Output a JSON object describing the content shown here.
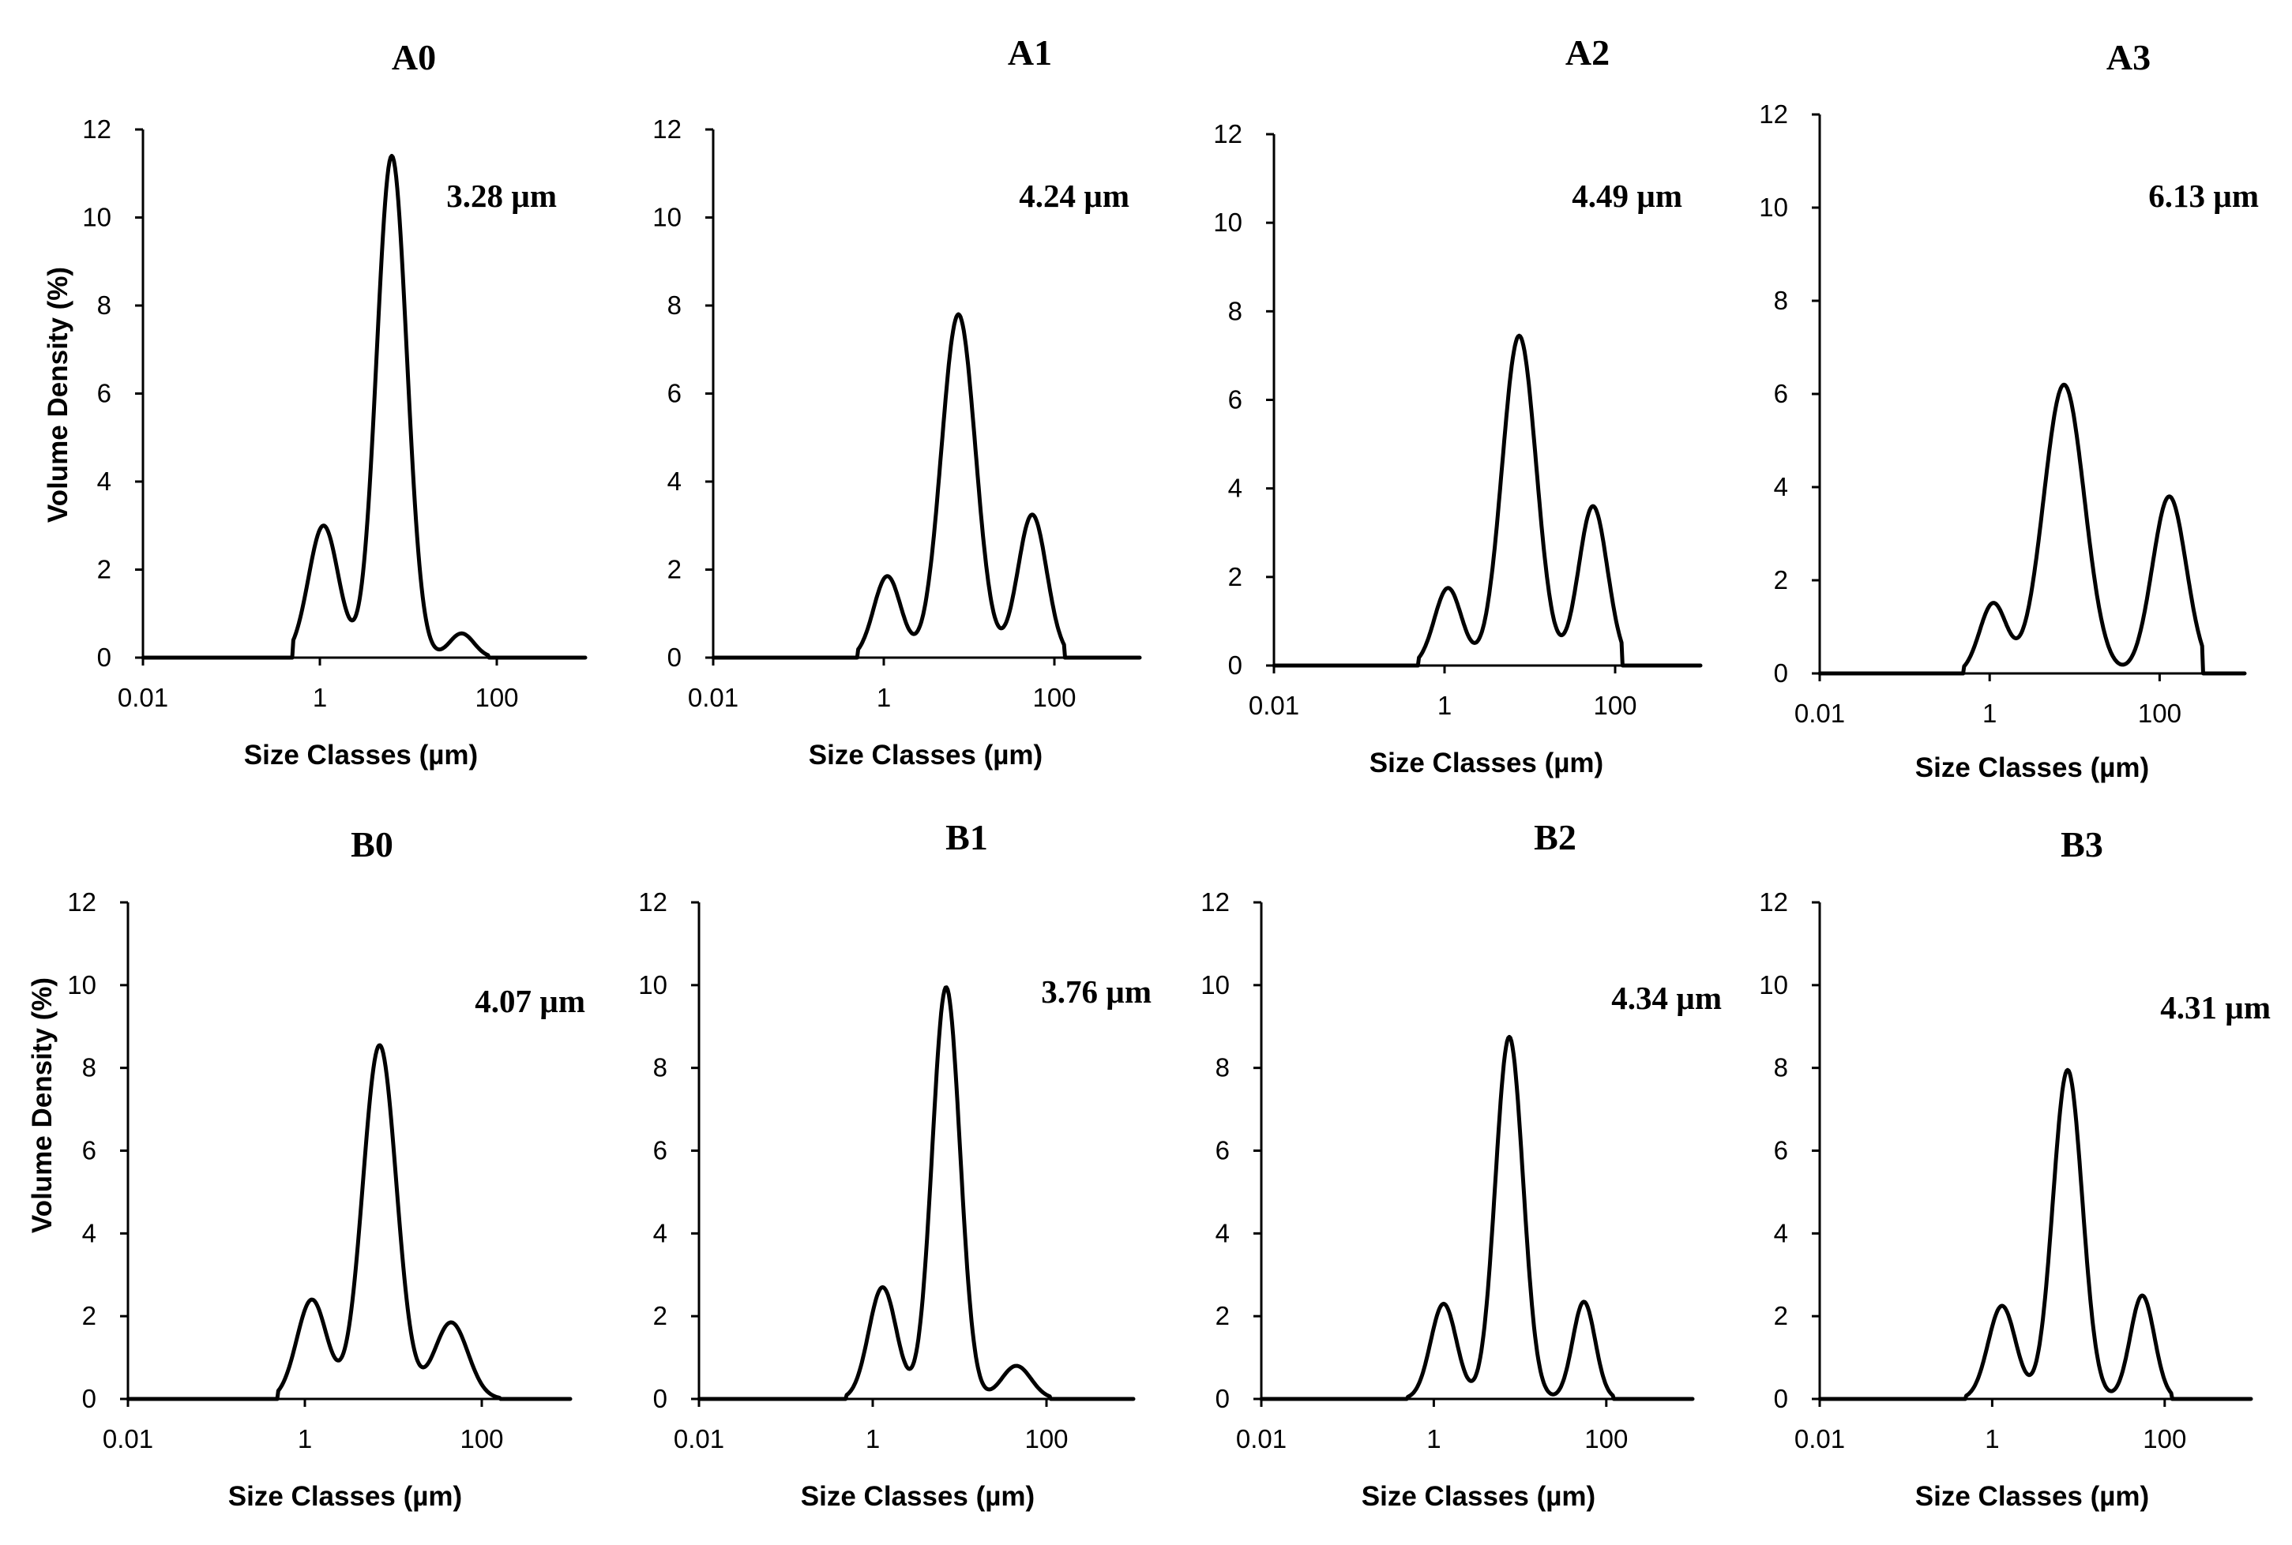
{
  "chart_data": [
    {
      "type": "line",
      "title": "A0",
      "annotation": "3.28 µm",
      "xlabel": "Size Classes (µm)",
      "ylabel": "Volume Density (%)",
      "xscale": "log",
      "xlim": [
        0.01,
        1000
      ],
      "ylim": [
        0,
        12
      ],
      "yticks": [
        "0",
        "2",
        "4",
        "6",
        "8",
        "10",
        "12"
      ],
      "xticks": [
        "0.01",
        "1",
        "100"
      ],
      "series": [
        {
          "name": "A0",
          "peaks": [
            {
              "x": 1.1,
              "y": 3.0,
              "w": 0.17
            },
            {
              "x": 6.5,
              "y": 11.4,
              "w": 0.17
            },
            {
              "x": 40,
              "y": 0.55,
              "w": 0.14
            }
          ],
          "range": [
            0.5,
            80
          ]
        }
      ]
    },
    {
      "type": "line",
      "title": "A1",
      "annotation": "4.24 µm",
      "xlabel": "Size Classes (µm)",
      "ylabel": "",
      "xscale": "log",
      "xlim": [
        0.01,
        1000
      ],
      "ylim": [
        0,
        12
      ],
      "yticks": [
        "0",
        "2",
        "4",
        "6",
        "8",
        "10",
        "12"
      ],
      "xticks": [
        "0.01",
        "1",
        "100"
      ],
      "series": [
        {
          "name": "A1",
          "peaks": [
            {
              "x": 1.1,
              "y": 1.85,
              "w": 0.16
            },
            {
              "x": 7.5,
              "y": 7.8,
              "w": 0.2
            },
            {
              "x": 55,
              "y": 3.25,
              "w": 0.17
            }
          ],
          "range": [
            0.5,
            130
          ]
        }
      ]
    },
    {
      "type": "line",
      "title": "A2",
      "annotation": "4.49 µm",
      "xlabel": "Size Classes (µm)",
      "ylabel": "",
      "xscale": "log",
      "xlim": [
        0.01,
        1000
      ],
      "ylim": [
        0,
        12
      ],
      "yticks": [
        "0",
        "2",
        "4",
        "6",
        "8",
        "10",
        "12"
      ],
      "xticks": [
        "0.01",
        "1",
        "100"
      ],
      "series": [
        {
          "name": "A2",
          "peaks": [
            {
              "x": 1.1,
              "y": 1.75,
              "w": 0.16
            },
            {
              "x": 7.5,
              "y": 7.45,
              "w": 0.2
            },
            {
              "x": 55,
              "y": 3.6,
              "w": 0.17
            }
          ],
          "range": [
            0.5,
            120
          ]
        }
      ]
    },
    {
      "type": "line",
      "title": "A3",
      "annotation": "6.13 µm",
      "xlabel": "Size Classes (µm)",
      "ylabel": "",
      "xscale": "log",
      "xlim": [
        0.01,
        1000
      ],
      "ylim": [
        0,
        12
      ],
      "yticks": [
        "0",
        "2",
        "4",
        "6",
        "8",
        "10",
        "12"
      ],
      "xticks": [
        "0.01",
        "1",
        "100"
      ],
      "series": [
        {
          "name": "A3",
          "peaks": [
            {
              "x": 1.1,
              "y": 1.5,
              "w": 0.16
            },
            {
              "x": 7.5,
              "y": 6.2,
              "w": 0.24
            },
            {
              "x": 130,
              "y": 3.8,
              "w": 0.2
            }
          ],
          "range": [
            0.5,
            320
          ]
        }
      ]
    },
    {
      "type": "line",
      "title": "B0",
      "annotation": "4.07 µm",
      "xlabel": "Size Classes (µm)",
      "ylabel": "Volume Density (%)",
      "xscale": "log",
      "xlim": [
        0.01,
        1000
      ],
      "ylim": [
        0,
        12
      ],
      "yticks": [
        "0",
        "2",
        "4",
        "6",
        "8",
        "10",
        "12"
      ],
      "xticks": [
        "0.01",
        "1",
        "100"
      ],
      "series": [
        {
          "name": "B0",
          "peaks": [
            {
              "x": 1.2,
              "y": 2.4,
              "w": 0.17
            },
            {
              "x": 7.0,
              "y": 8.55,
              "w": 0.19
            },
            {
              "x": 45,
              "y": 1.85,
              "w": 0.19
            }
          ],
          "range": [
            0.5,
            160
          ]
        }
      ]
    },
    {
      "type": "line",
      "title": "B1",
      "annotation": "3.76 µm",
      "xlabel": "Size Classes (µm)",
      "ylabel": "",
      "xscale": "log",
      "xlim": [
        0.01,
        1000
      ],
      "ylim": [
        0,
        12
      ],
      "yticks": [
        "0",
        "2",
        "4",
        "6",
        "8",
        "10",
        "12"
      ],
      "xticks": [
        "0.01",
        "1",
        "100"
      ],
      "series": [
        {
          "name": "B1",
          "peaks": [
            {
              "x": 1.3,
              "y": 2.7,
              "w": 0.16
            },
            {
              "x": 7.0,
              "y": 9.95,
              "w": 0.16
            },
            {
              "x": 45,
              "y": 0.8,
              "w": 0.17
            }
          ],
          "range": [
            0.5,
            110
          ]
        }
      ]
    },
    {
      "type": "line",
      "title": "B2",
      "annotation": "4.34 µm",
      "xlabel": "Size Classes (µm)",
      "ylabel": "",
      "xscale": "log",
      "xlim": [
        0.01,
        1000
      ],
      "ylim": [
        0,
        12
      ],
      "yticks": [
        "0",
        "2",
        "4",
        "6",
        "8",
        "10",
        "12"
      ],
      "xticks": [
        "0.01",
        "1",
        "100"
      ],
      "series": [
        {
          "name": "B2",
          "peaks": [
            {
              "x": 1.3,
              "y": 2.3,
              "w": 0.15
            },
            {
              "x": 7.5,
              "y": 8.75,
              "w": 0.16
            },
            {
              "x": 55,
              "y": 2.35,
              "w": 0.13
            }
          ],
          "range": [
            0.5,
            120
          ]
        }
      ]
    },
    {
      "type": "line",
      "title": "B3",
      "annotation": "4.31 µm",
      "xlabel": "Size Classes (µm)",
      "ylabel": "",
      "xscale": "log",
      "xlim": [
        0.01,
        1000
      ],
      "ylim": [
        0,
        12
      ],
      "yticks": [
        "0",
        "2",
        "4",
        "6",
        "8",
        "10",
        "12"
      ],
      "xticks": [
        "0.01",
        "1",
        "100"
      ],
      "series": [
        {
          "name": "B3",
          "peaks": [
            {
              "x": 1.3,
              "y": 2.25,
              "w": 0.16
            },
            {
              "x": 7.5,
              "y": 7.95,
              "w": 0.17
            },
            {
              "x": 55,
              "y": 2.5,
              "w": 0.14
            }
          ],
          "range": [
            0.5,
            120
          ]
        }
      ]
    }
  ]
}
